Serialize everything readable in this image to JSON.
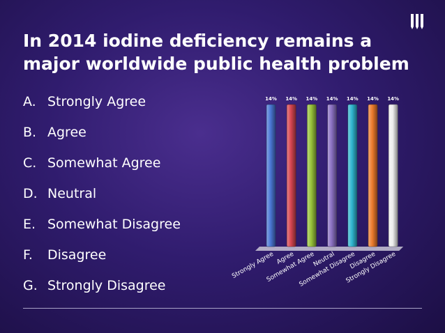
{
  "slide": {
    "title": "In 2014 iodine deficiency remains a major worldwide public health problem",
    "options": [
      {
        "letter": "A.",
        "text": "Strongly Agree"
      },
      {
        "letter": "B.",
        "text": "Agree"
      },
      {
        "letter": "C.",
        "text": "Somewhat Agree"
      },
      {
        "letter": "D.",
        "text": "Neutral"
      },
      {
        "letter": "E.",
        "text": "Somewhat Disagree"
      },
      {
        "letter": "F.",
        "text": "Disagree"
      },
      {
        "letter": "G.",
        "text": "Strongly Disagree"
      }
    ]
  },
  "chart_data": {
    "type": "bar",
    "categories": [
      "Strongly Agree",
      "Agree",
      "Somewhat Agree",
      "Neutral",
      "Somewhat Disagree",
      "Disagree",
      "Strongly Disagree"
    ],
    "values": [
      14,
      14,
      14,
      14,
      14,
      14,
      14
    ],
    "data_labels": [
      "14%",
      "14%",
      "14%",
      "14%",
      "14%",
      "14%",
      "14%"
    ],
    "unit": "%",
    "colors": [
      "#4a77d4",
      "#d64550",
      "#97c23a",
      "#8a70c2",
      "#2fb5cf",
      "#ec7a2c",
      "#eeeeee"
    ],
    "title": "",
    "xlabel": "",
    "ylabel": "",
    "grid": false,
    "legend": false
  }
}
